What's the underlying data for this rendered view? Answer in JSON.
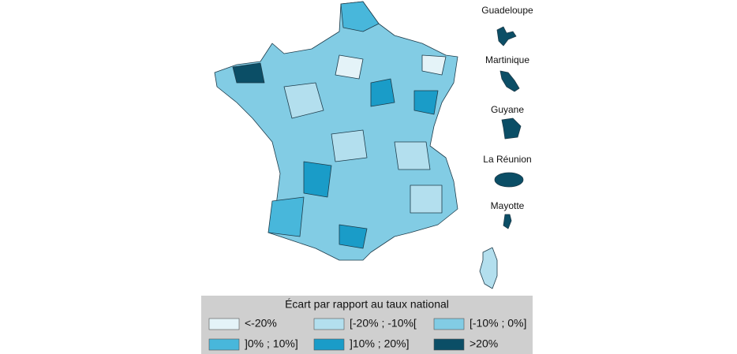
{
  "overseas": [
    {
      "label": "Guadeloupe"
    },
    {
      "label": "Martinique"
    },
    {
      "label": "Guyane"
    },
    {
      "label": "La Réunion"
    },
    {
      "label": "Mayotte"
    }
  ],
  "legend": {
    "title": "Écart par rapport au taux national",
    "items": [
      {
        "label": "<-20%",
        "color": "#e4f3f8"
      },
      {
        "label": "[-20% ; -10%[",
        "color": "#b3dfee"
      },
      {
        "label": "[-10% ; 0%]",
        "color": "#82cce4"
      },
      {
        "label": "]0% ; 10%]",
        "color": "#48b7db"
      },
      {
        "label": "]10% ; 20%]",
        "color": "#1a9cc8"
      },
      {
        "label": ">20%",
        "color": "#0b4e66"
      }
    ]
  }
}
